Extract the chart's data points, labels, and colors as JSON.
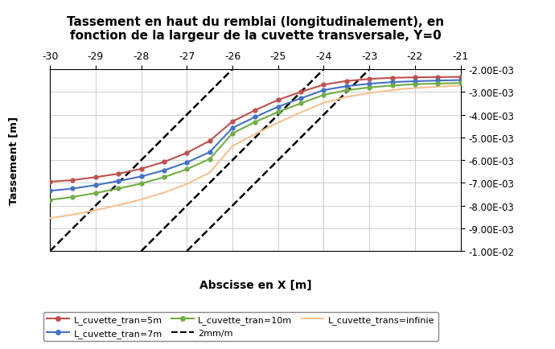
{
  "title": "Tassement en haut du remblai (longitudinalement), en\nfonction de la largeur de la cuvette transversale, Y=0",
  "xlabel": "Abscisse en X [m]",
  "ylabel": "Tassement [m]",
  "x_min": -30,
  "x_max": -21,
  "y_min": -0.01,
  "y_max": -0.002,
  "x_ticks": [
    -30,
    -29,
    -28,
    -27,
    -26,
    -25,
    -24,
    -23,
    -22,
    -21
  ],
  "y_ticks": [
    -0.01,
    -0.009,
    -0.008,
    -0.007,
    -0.006,
    -0.005,
    -0.004,
    -0.003,
    -0.002
  ],
  "series_5m_x": [
    -30,
    -29.5,
    -29,
    -28.5,
    -28,
    -27.5,
    -27,
    -26.5,
    -26,
    -25.5,
    -25,
    -24.5,
    -24,
    -23.5,
    -23,
    -22.5,
    -22,
    -21.5,
    -21
  ],
  "series_5m_y": [
    -0.00695,
    -0.00688,
    -0.00675,
    -0.0066,
    -0.00638,
    -0.00608,
    -0.00568,
    -0.00515,
    -0.0043,
    -0.0038,
    -0.00335,
    -0.003,
    -0.00268,
    -0.00252,
    -0.00243,
    -0.00238,
    -0.00236,
    -0.00235,
    -0.00234
  ],
  "series_7m_x": [
    -30,
    -29.5,
    -29,
    -28.5,
    -28,
    -27.5,
    -27,
    -26.5,
    -26,
    -25.5,
    -25,
    -24.5,
    -24,
    -23.5,
    -23,
    -22.5,
    -22,
    -21.5,
    -21
  ],
  "series_7m_y": [
    -0.00735,
    -0.00725,
    -0.0071,
    -0.00692,
    -0.00672,
    -0.00645,
    -0.0061,
    -0.00565,
    -0.00458,
    -0.0041,
    -0.00365,
    -0.00328,
    -0.00292,
    -0.00275,
    -0.00264,
    -0.00257,
    -0.00253,
    -0.0025,
    -0.00248
  ],
  "series_10m_x": [
    -30,
    -29.5,
    -29,
    -28.5,
    -28,
    -27.5,
    -27,
    -26.5,
    -26,
    -25.5,
    -25,
    -24.5,
    -24,
    -23.5,
    -23,
    -22.5,
    -22,
    -21.5,
    -21
  ],
  "series_10m_y": [
    -0.00775,
    -0.00762,
    -0.00745,
    -0.00725,
    -0.00703,
    -0.00675,
    -0.0064,
    -0.00595,
    -0.00482,
    -0.00432,
    -0.00388,
    -0.0035,
    -0.00313,
    -0.00293,
    -0.0028,
    -0.00272,
    -0.00266,
    -0.00263,
    -0.00261
  ],
  "series_inf_x": [
    -30,
    -29.5,
    -29,
    -28.5,
    -28,
    -27.5,
    -27,
    -26.5,
    -26,
    -25.5,
    -25,
    -24.5,
    -24,
    -23.5,
    -23,
    -22.5,
    -22,
    -21.5,
    -21
  ],
  "series_inf_y": [
    -0.00855,
    -0.0084,
    -0.0082,
    -0.00798,
    -0.00773,
    -0.00743,
    -0.00705,
    -0.00655,
    -0.00538,
    -0.00485,
    -0.00435,
    -0.0039,
    -0.00348,
    -0.00322,
    -0.00305,
    -0.00292,
    -0.00283,
    -0.00277,
    -0.00272
  ],
  "color_5m": "#c0504d",
  "color_7m": "#4472c4",
  "color_10m": "#70ad47",
  "color_inf": "#fac090",
  "color_dash": "#000000",
  "legend_5m": "L_cuvette_tran=5m",
  "legend_7m": "L_cuvette_tran=7m",
  "legend_10m": "L_cuvette_tran=10m",
  "legend_dash": "2mm/m",
  "legend_inf": "L_cuvette_trans=infinie"
}
